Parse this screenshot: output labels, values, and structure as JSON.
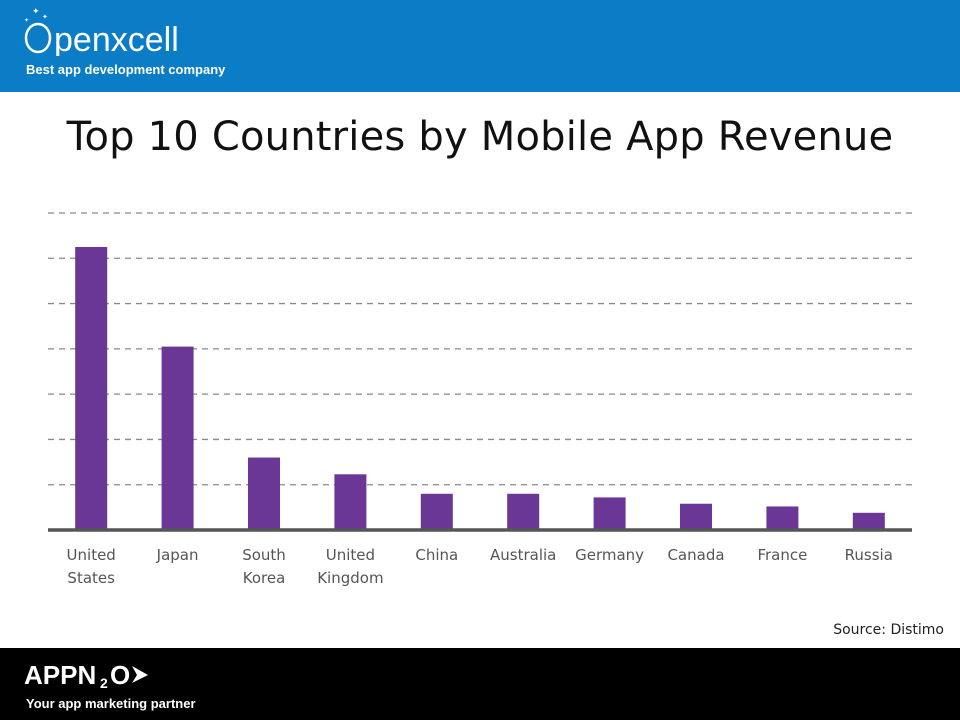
{
  "header": {
    "brand_name": "Openxcell",
    "tagline": "Best app development company",
    "background": "#0a7dc6"
  },
  "slide": {
    "title": "Top 10 Countries by Mobile App Revenue",
    "source": "Source: Distimo"
  },
  "footer": {
    "brand_name": "APPN2O",
    "tagline": "Your app marketing partner",
    "background": "#000000"
  },
  "chart_data": {
    "type": "bar",
    "categories": [
      "United States",
      "Japan",
      "South Korea",
      "United Kingdom",
      "China",
      "Australia",
      "Germany",
      "Canada",
      "France",
      "Russia"
    ],
    "category_lines": [
      [
        "United",
        "States"
      ],
      [
        "Japan"
      ],
      [
        "South",
        "Korea"
      ],
      [
        "United",
        "Kingdom"
      ],
      [
        "China"
      ],
      [
        "Australia"
      ],
      [
        "Germany"
      ],
      [
        "Canada"
      ],
      [
        "France"
      ],
      [
        "Russia"
      ]
    ],
    "values": [
      62.5,
      40.5,
      16,
      12.3,
      8,
      8,
      7.2,
      5.8,
      5.2,
      3.8
    ],
    "ylim": [
      0,
      70
    ],
    "grid": true,
    "grid_style": "dashed",
    "value_axis_labels": false,
    "bar_color": "#6a3796",
    "title": "Top 10 Countries by Mobile App Revenue",
    "xlabel": "",
    "ylabel": ""
  }
}
